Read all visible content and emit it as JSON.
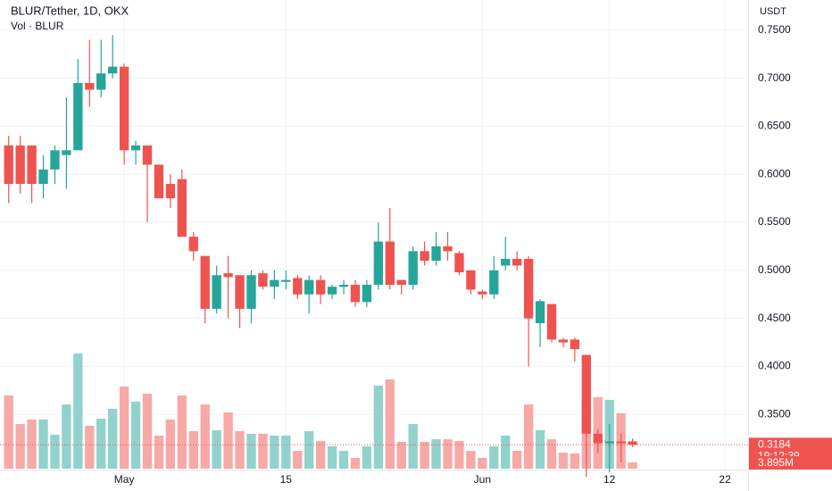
{
  "chart_data": {
    "type": "candlestick",
    "title": "BLUR/Tether, 1D, OKX",
    "subtitle": "Vol · BLUR",
    "currency": "USDT",
    "up_color": "#26a69a",
    "down_color": "#ef5350",
    "volume_up_color": "#92d2cc",
    "volume_down_color": "#f7a9a7",
    "open": [
      0.63,
      0.63,
      0.63,
      0.59,
      0.605,
      0.62,
      0.625,
      0.695,
      0.688,
      0.705,
      0.712,
      0.625,
      0.63,
      0.61,
      0.59,
      0.595,
      0.535,
      0.515,
      0.46,
      0.497,
      0.495,
      0.46,
      0.497,
      0.483,
      0.488,
      0.492,
      0.475,
      0.49,
      0.475,
      0.483,
      0.485,
      0.467,
      0.485,
      0.53,
      0.49,
      0.485,
      0.52,
      0.51,
      0.525,
      0.518,
      0.5,
      0.478,
      0.475,
      0.505,
      0.512,
      0.512,
      0.445,
      0.465,
      0.428,
      0.428,
      0.412,
      0.33,
      0.32,
      0.322,
      0.322
    ],
    "high": [
      0.64,
      0.64,
      0.63,
      0.62,
      0.63,
      0.68,
      0.72,
      0.74,
      0.74,
      0.745,
      0.715,
      0.635,
      0.63,
      0.61,
      0.6,
      0.605,
      0.54,
      0.515,
      0.505,
      0.515,
      0.495,
      0.5,
      0.5,
      0.5,
      0.5,
      0.495,
      0.495,
      0.495,
      0.485,
      0.49,
      0.49,
      0.49,
      0.55,
      0.565,
      0.49,
      0.525,
      0.53,
      0.54,
      0.54,
      0.52,
      0.5,
      0.48,
      0.515,
      0.535,
      0.52,
      0.515,
      0.47,
      0.465,
      0.43,
      0.43,
      0.412,
      0.335,
      0.34,
      0.33,
      0.325
    ],
    "low": [
      0.57,
      0.58,
      0.57,
      0.575,
      0.59,
      0.585,
      0.625,
      0.67,
      0.68,
      0.7,
      0.61,
      0.61,
      0.55,
      0.575,
      0.565,
      0.535,
      0.51,
      0.445,
      0.455,
      0.45,
      0.44,
      0.445,
      0.48,
      0.47,
      0.48,
      0.47,
      0.455,
      0.465,
      0.47,
      0.475,
      0.462,
      0.462,
      0.48,
      0.48,
      0.475,
      0.48,
      0.505,
      0.505,
      0.51,
      0.495,
      0.475,
      0.47,
      0.47,
      0.5,
      0.5,
      0.4,
      0.42,
      0.425,
      0.42,
      0.405,
      0.285,
      0.31,
      0.29,
      0.3,
      0.316
    ],
    "close": [
      0.59,
      0.59,
      0.59,
      0.605,
      0.625,
      0.625,
      0.695,
      0.688,
      0.705,
      0.712,
      0.625,
      0.63,
      0.61,
      0.575,
      0.575,
      0.535,
      0.52,
      0.46,
      0.495,
      0.493,
      0.46,
      0.495,
      0.483,
      0.49,
      0.49,
      0.475,
      0.49,
      0.475,
      0.483,
      0.485,
      0.467,
      0.485,
      0.53,
      0.485,
      0.485,
      0.52,
      0.51,
      0.525,
      0.52,
      0.498,
      0.48,
      0.475,
      0.5,
      0.512,
      0.505,
      0.45,
      0.468,
      0.428,
      0.425,
      0.418,
      0.33,
      0.32,
      0.322,
      0.32,
      0.3184
    ],
    "close_labels": [
      null,
      null,
      null,
      null,
      null,
      null,
      null,
      null,
      null,
      null,
      null,
      null,
      null,
      null,
      null,
      null,
      null,
      null,
      null,
      null,
      null,
      null,
      null,
      null,
      null,
      null,
      null,
      null,
      null,
      null,
      null,
      null,
      null,
      null,
      null,
      null,
      null,
      null,
      null,
      null,
      null,
      null,
      null,
      null,
      null,
      null,
      null,
      null,
      null,
      null,
      null,
      null,
      null,
      null,
      "0.3184"
    ],
    "countdown": "19:12:39",
    "volume": {
      "values": [
        45.6,
        27.8,
        30.6,
        30.6,
        21.1,
        40,
        71.7,
        26.7,
        31.1,
        37.3,
        51.2,
        41.7,
        46.7,
        20.6,
        30.6,
        45.6,
        23.4,
        40,
        23.9,
        35,
        23.4,
        21.7,
        21.7,
        20.6,
        20.6,
        11.1,
        23.4,
        17.2,
        13.9,
        11.1,
        6.7,
        13.9,
        51.7,
        55.6,
        16.7,
        27.8,
        16.7,
        18.3,
        18.3,
        17.2,
        11.1,
        6.7,
        13.9,
        20.6,
        11.1,
        40,
        23.9,
        18.3,
        10,
        9.5,
        44.5,
        44.5,
        42.8,
        34.5,
        3.895
      ],
      "value_labels": [
        null,
        null,
        null,
        null,
        null,
        null,
        null,
        null,
        null,
        null,
        null,
        null,
        null,
        null,
        null,
        null,
        null,
        null,
        null,
        null,
        null,
        null,
        null,
        null,
        null,
        null,
        null,
        null,
        null,
        null,
        null,
        null,
        null,
        null,
        null,
        null,
        null,
        null,
        null,
        null,
        null,
        null,
        null,
        null,
        null,
        null,
        null,
        null,
        null,
        null,
        null,
        null,
        null,
        null,
        "3.895M"
      ],
      "ylim": [
        0,
        80
      ]
    },
    "xlim": [
      -0.75,
      64
    ],
    "xticks": [
      {
        "value": 10,
        "label": "May"
      },
      {
        "value": 24,
        "label": "15"
      },
      {
        "value": 41,
        "label": "Jun"
      },
      {
        "value": 52,
        "label": "12"
      },
      {
        "value": 62,
        "label": "22"
      }
    ],
    "ylim": [
      0.2936,
      0.7814
    ],
    "yticks": [
      {
        "value": 0.35,
        "label": "0.3500"
      },
      {
        "value": 0.4,
        "label": "0.4000"
      },
      {
        "value": 0.45,
        "label": "0.4500"
      },
      {
        "value": 0.5,
        "label": "0.5000"
      },
      {
        "value": 0.55,
        "label": "0.5500"
      },
      {
        "value": 0.6,
        "label": "0.6000"
      },
      {
        "value": 0.65,
        "label": "0.6500"
      },
      {
        "value": 0.7,
        "label": "0.7000"
      },
      {
        "value": 0.75,
        "label": "0.7500"
      }
    ],
    "grid": true
  }
}
